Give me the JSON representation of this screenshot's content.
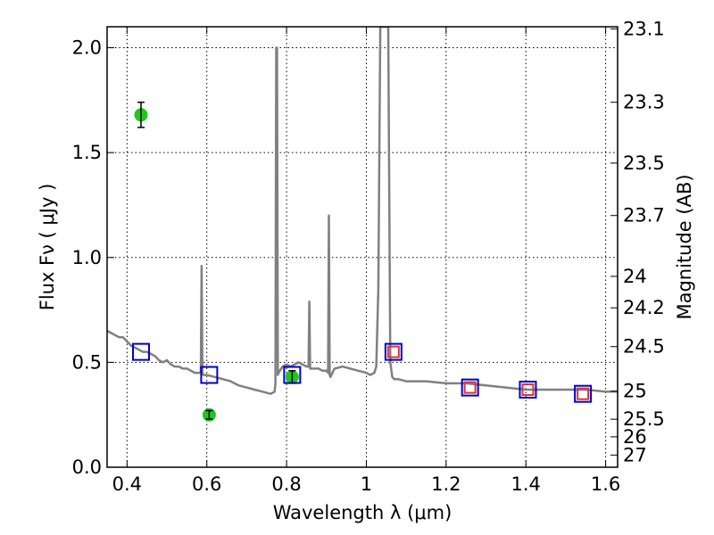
{
  "chart_data": {
    "type": "scatter",
    "xlabel": "Wavelength  λ (μm)",
    "ylabel": "Flux  Fν  ( μJy )",
    "y2label": "Magnitude (AB)",
    "xlim": [
      0.35,
      1.63
    ],
    "ylim": [
      0.0,
      2.1
    ],
    "grid": true,
    "xticks": [
      0.4,
      0.6,
      0.8,
      1.0,
      1.2,
      1.4,
      1.6
    ],
    "xtick_labels": [
      "0.4",
      "0.6",
      "0.8",
      "1",
      "1.2",
      "1.4",
      "1.6"
    ],
    "yticks": [
      0.0,
      0.5,
      1.0,
      1.5,
      2.0
    ],
    "ytick_labels": [
      "0.0",
      "0.5",
      "1.0",
      "1.5",
      "2.0"
    ],
    "y2_ticks": [
      {
        "label": "23.1",
        "flux": 2.09
      },
      {
        "label": "23.3",
        "flux": 1.74
      },
      {
        "label": "23.5",
        "flux": 1.45
      },
      {
        "label": "23.7",
        "flux": 1.2
      },
      {
        "label": "24",
        "flux": 0.91
      },
      {
        "label": "24.2",
        "flux": 0.76
      },
      {
        "label": "24.5",
        "flux": 0.575
      },
      {
        "label": "25",
        "flux": 0.363
      },
      {
        "label": "25.5",
        "flux": 0.229
      },
      {
        "label": "26",
        "flux": 0.145
      },
      {
        "label": "27",
        "flux": 0.058
      }
    ],
    "series": [
      {
        "type": "line",
        "color": "#808080",
        "x": [
          0.35,
          0.36,
          0.37,
          0.38,
          0.39,
          0.4,
          0.41,
          0.42,
          0.43,
          0.44,
          0.45,
          0.46,
          0.47,
          0.48,
          0.49,
          0.5,
          0.51,
          0.52,
          0.53,
          0.54,
          0.55,
          0.56,
          0.57,
          0.58,
          0.585,
          0.587,
          0.589,
          0.591,
          0.6,
          0.62,
          0.64,
          0.66,
          0.68,
          0.7,
          0.72,
          0.74,
          0.76,
          0.77,
          0.772,
          0.774,
          0.776,
          0.778,
          0.78,
          0.79,
          0.8,
          0.81,
          0.82,
          0.83,
          0.84,
          0.85,
          0.855,
          0.857,
          0.859,
          0.861,
          0.87,
          0.88,
          0.89,
          0.9,
          0.904,
          0.906,
          0.908,
          0.91,
          0.92,
          0.94,
          0.96,
          0.98,
          1.0,
          1.01,
          1.02,
          1.025,
          1.03,
          1.035,
          1.04,
          1.045,
          1.05,
          1.055,
          1.06,
          1.065,
          1.07,
          1.08,
          1.1,
          1.15,
          1.2,
          1.25,
          1.3,
          1.35,
          1.4,
          1.45,
          1.5,
          1.55,
          1.6,
          1.63
        ],
        "y": [
          0.65,
          0.64,
          0.63,
          0.62,
          0.62,
          0.6,
          0.58,
          0.57,
          0.56,
          0.55,
          0.55,
          0.54,
          0.53,
          0.51,
          0.5,
          0.51,
          0.49,
          0.48,
          0.48,
          0.47,
          0.47,
          0.46,
          0.45,
          0.45,
          0.45,
          0.96,
          0.45,
          0.44,
          0.44,
          0.43,
          0.42,
          0.41,
          0.39,
          0.38,
          0.37,
          0.36,
          0.35,
          0.36,
          0.4,
          2.0,
          2.0,
          0.44,
          0.45,
          0.48,
          0.49,
          0.48,
          0.49,
          0.5,
          0.49,
          0.48,
          0.48,
          0.79,
          0.47,
          0.47,
          0.47,
          0.47,
          0.46,
          0.46,
          0.45,
          1.2,
          0.44,
          0.43,
          0.47,
          0.48,
          0.47,
          0.46,
          0.45,
          0.44,
          0.45,
          0.48,
          0.85,
          2.1,
          2.1,
          2.1,
          2.1,
          2.1,
          0.5,
          0.43,
          0.42,
          0.42,
          0.41,
          0.41,
          0.4,
          0.4,
          0.39,
          0.38,
          0.37,
          0.37,
          0.37,
          0.37,
          0.36,
          0.36
        ]
      },
      {
        "type": "errorbar",
        "marker": "circle",
        "color": "#1ec81e",
        "points": [
          {
            "x": 0.435,
            "y": 1.68,
            "err": 0.06
          },
          {
            "x": 0.606,
            "y": 0.25,
            "err": 0.02
          },
          {
            "x": 0.814,
            "y": 0.43,
            "err": 0.03
          }
        ]
      },
      {
        "type": "scatter",
        "marker": "open-square",
        "color": "#0000cc",
        "x": [
          0.435,
          0.606,
          0.814,
          1.068,
          1.26,
          1.405,
          1.543
        ],
        "y": [
          0.55,
          0.44,
          0.44,
          0.55,
          0.38,
          0.37,
          0.35
        ]
      },
      {
        "type": "scatter",
        "marker": "open-square-small",
        "color": "#dd3333",
        "x": [
          1.068,
          1.26,
          1.405,
          1.543
        ],
        "y": [
          0.55,
          0.38,
          0.37,
          0.35
        ]
      }
    ]
  }
}
